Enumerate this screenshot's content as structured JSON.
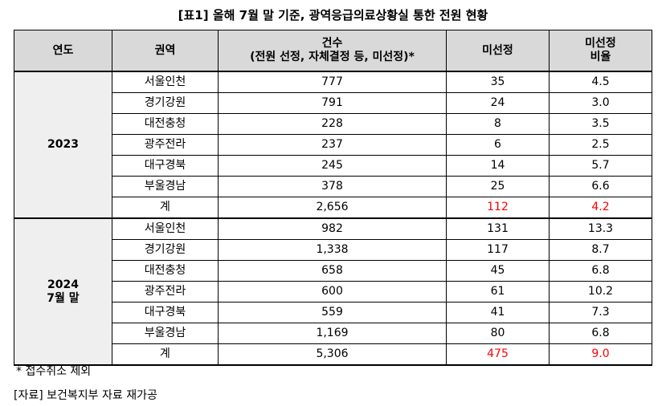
{
  "title": "[표1] 올해 7월 말 기준, 광역응급의료상황실 통한 전원 현황",
  "headers": {
    "year": "연도",
    "region": "권역",
    "count_line1": "건수",
    "count_line2": "(전원 선정, 자체결정 등, 미선정)*",
    "unselected": "미선정",
    "ratio_line1": "미선정",
    "ratio_line2": "비율"
  },
  "blocks": [
    {
      "year_line1": "2023",
      "year_line2": "",
      "rows": [
        {
          "region": "서울인천",
          "count": "777",
          "unselected": "35",
          "ratio": "4.5"
        },
        {
          "region": "경기강원",
          "count": "791",
          "unselected": "24",
          "ratio": "3.0"
        },
        {
          "region": "대전충청",
          "count": "228",
          "unselected": "8",
          "ratio": "3.5"
        },
        {
          "region": "광주전라",
          "count": "237",
          "unselected": "6",
          "ratio": "2.5"
        },
        {
          "region": "대구경북",
          "count": "245",
          "unselected": "14",
          "ratio": "5.7"
        },
        {
          "region": "부울경남",
          "count": "378",
          "unselected": "25",
          "ratio": "6.6"
        },
        {
          "region": "계",
          "count": "2,656",
          "unselected": "112",
          "ratio": "4.2"
        }
      ]
    },
    {
      "year_line1": "2024",
      "year_line2": "7월 말",
      "rows": [
        {
          "region": "서울인천",
          "count": "982",
          "unselected": "131",
          "ratio": "13.3"
        },
        {
          "region": "경기강원",
          "count": "1,338",
          "unselected": "117",
          "ratio": "8.7"
        },
        {
          "region": "대전충청",
          "count": "658",
          "unselected": "45",
          "ratio": "6.8"
        },
        {
          "region": "광주전라",
          "count": "600",
          "unselected": "61",
          "ratio": "10.2"
        },
        {
          "region": "대구경북",
          "count": "559",
          "unselected": "41",
          "ratio": "7.3"
        },
        {
          "region": "부울경남",
          "count": "1,169",
          "unselected": "80",
          "ratio": "6.8"
        },
        {
          "region": "계",
          "count": "5,306",
          "unselected": "475",
          "ratio": "9.0"
        }
      ]
    }
  ],
  "highlight_color": "#ff0000",
  "note": "*  접수취소  제외",
  "source": "[자료]  보건복지부  자료  재가공"
}
